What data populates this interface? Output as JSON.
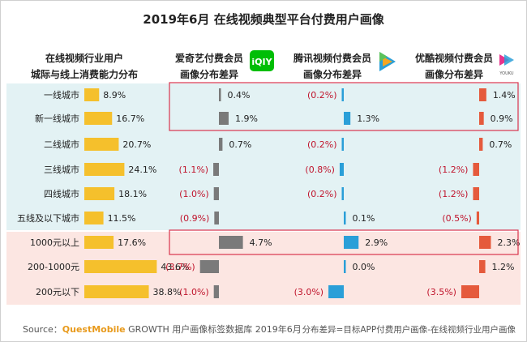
{
  "title": "2019年6月 在线视频典型平台付费用户画像",
  "column_headers": {
    "industry": [
      "在线视频行业用户",
      "城际与线上消费能力分布"
    ],
    "iqiyi": [
      "爱奇艺付费会员",
      "画像分布差异"
    ],
    "tencent": [
      "腾讯视频付费会员",
      "画像分布差异"
    ],
    "youku": [
      "优酷视频付费会员",
      "画像分布差异"
    ]
  },
  "logos": {
    "iqiyi": "iQIY",
    "youku": "YOUKU"
  },
  "colors": {
    "industry_bar": "#F5C02C",
    "iqiyi_bar": "#7A7A7A",
    "tencent_bar": "#2A9FD8",
    "youku_bar": "#E55A3C",
    "negative_text": "#C0142C",
    "city_band": "#E3F2F4",
    "income_band": "#FCE6E2",
    "highlight_box": "#D9344D"
  },
  "chart_data": {
    "type": "bar",
    "categories": [
      "一线城市",
      "新一线城市",
      "二线城市",
      "三线城市",
      "四线城市",
      "五线及以下城市",
      "1000元以上",
      "200-1000元",
      "200元以下"
    ],
    "groups": [
      {
        "name": "城际",
        "categories": [
          "一线城市",
          "新一线城市",
          "二线城市",
          "三线城市",
          "四线城市",
          "五线及以下城市"
        ]
      },
      {
        "name": "线上消费能力",
        "categories": [
          "1000元以上",
          "200-1000元",
          "200元以下"
        ]
      }
    ],
    "industry": {
      "values": [
        8.9,
        16.7,
        20.7,
        24.1,
        18.1,
        11.5,
        17.6,
        43.6,
        38.8
      ],
      "labels": [
        "8.9%",
        "16.7%",
        "20.7%",
        "24.1%",
        "18.1%",
        "11.5%",
        "17.6%",
        "43.6%",
        "38.8%"
      ]
    },
    "series": [
      {
        "key": "iqiyi",
        "values": [
          0.4,
          1.9,
          0.7,
          -1.1,
          -1.0,
          -0.9,
          4.7,
          -3.7,
          -1.0
        ],
        "labels": [
          "0.4%",
          "1.9%",
          "0.7%",
          "(1.1%)",
          "(1.0%)",
          "(0.9%)",
          "4.7%",
          "(3.7%)",
          "(1.0%)"
        ]
      },
      {
        "key": "tencent",
        "values": [
          -0.2,
          1.3,
          -0.2,
          -0.8,
          -0.2,
          0.1,
          2.9,
          0.0,
          -3.0
        ],
        "labels": [
          "(0.2%)",
          "1.3%",
          "(0.2%)",
          "(0.8%)",
          "(0.2%)",
          "0.1%",
          "2.9%",
          "0.0%",
          "(3.0%)"
        ]
      },
      {
        "key": "youku",
        "values": [
          1.4,
          0.9,
          0.7,
          -1.2,
          -1.2,
          -0.5,
          2.3,
          1.2,
          -3.5
        ],
        "labels": [
          "1.4%",
          "0.9%",
          "0.7%",
          "(1.2%)",
          "(1.2%)",
          "(0.5%)",
          "2.3%",
          "1.2%",
          "(3.5%)"
        ]
      }
    ],
    "highlighted_rows": [
      [
        "一线城市",
        "新一线城市"
      ],
      [
        "1000元以上"
      ]
    ]
  },
  "footer": {
    "source_prefix": "Source：",
    "source_brand": "QuestMobile",
    "source_rest": " GROWTH 用户画像标签数据库 2019年6月",
    "note": "分布差异=目标APP付费用户画像-在线视频行业用户画像"
  }
}
